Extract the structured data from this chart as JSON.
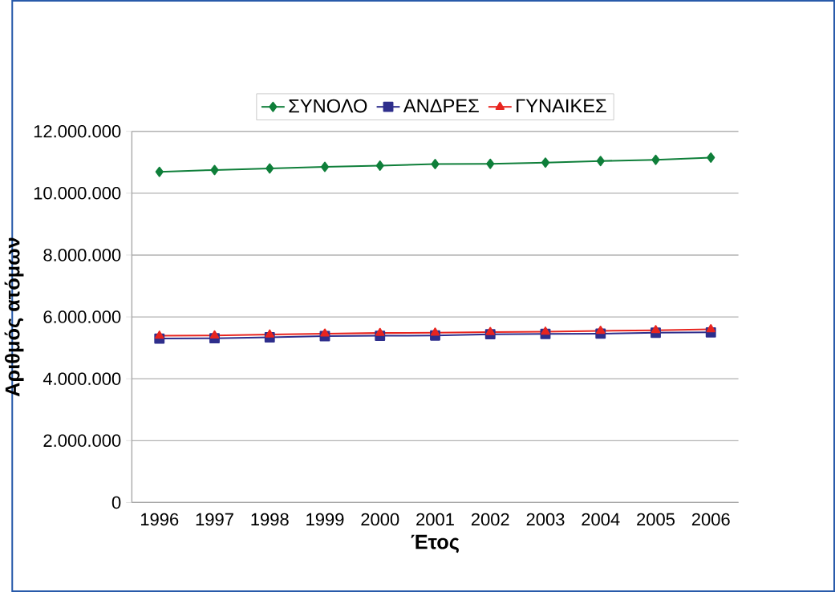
{
  "chart_data": {
    "type": "line",
    "xlabel": "Έτος",
    "ylabel": "Αριθμός ατόμων",
    "categories": [
      "1996",
      "1997",
      "1998",
      "1999",
      "2000",
      "2001",
      "2002",
      "2003",
      "2004",
      "2005",
      "2006"
    ],
    "series": [
      {
        "name": "ΣΥΝΟΛΟ",
        "color": "#0f7f3a",
        "marker": "diamond",
        "values": [
          10690000,
          10750000,
          10800000,
          10850000,
          10890000,
          10940000,
          10950000,
          10990000,
          11040000,
          11080000,
          11150000
        ]
      },
      {
        "name": "ΑΝΔΡΕΣ",
        "color": "#2e2e8c",
        "marker": "square",
        "values": [
          5300000,
          5310000,
          5340000,
          5380000,
          5390000,
          5400000,
          5440000,
          5450000,
          5460000,
          5490000,
          5500000
        ]
      },
      {
        "name": "ΓΥΝΑΙΚΕΣ",
        "color": "#e8251f",
        "marker": "triangle",
        "values": [
          5390000,
          5400000,
          5430000,
          5460000,
          5480000,
          5490000,
          5510000,
          5520000,
          5550000,
          5570000,
          5600000
        ]
      }
    ],
    "ylim": [
      0,
      12000000
    ],
    "yticks": [
      {
        "value": 0,
        "label": "0"
      },
      {
        "value": 2000000,
        "label": "2.000.000"
      },
      {
        "value": 4000000,
        "label": "4.000.000"
      },
      {
        "value": 6000000,
        "label": "6.000.000"
      },
      {
        "value": 8000000,
        "label": "8.000.000"
      },
      {
        "value": 10000000,
        "label": "10.000.000"
      },
      {
        "value": 12000000,
        "label": "12.000.000"
      }
    ],
    "grid": "y",
    "legend": "top",
    "line_style": "solid"
  }
}
